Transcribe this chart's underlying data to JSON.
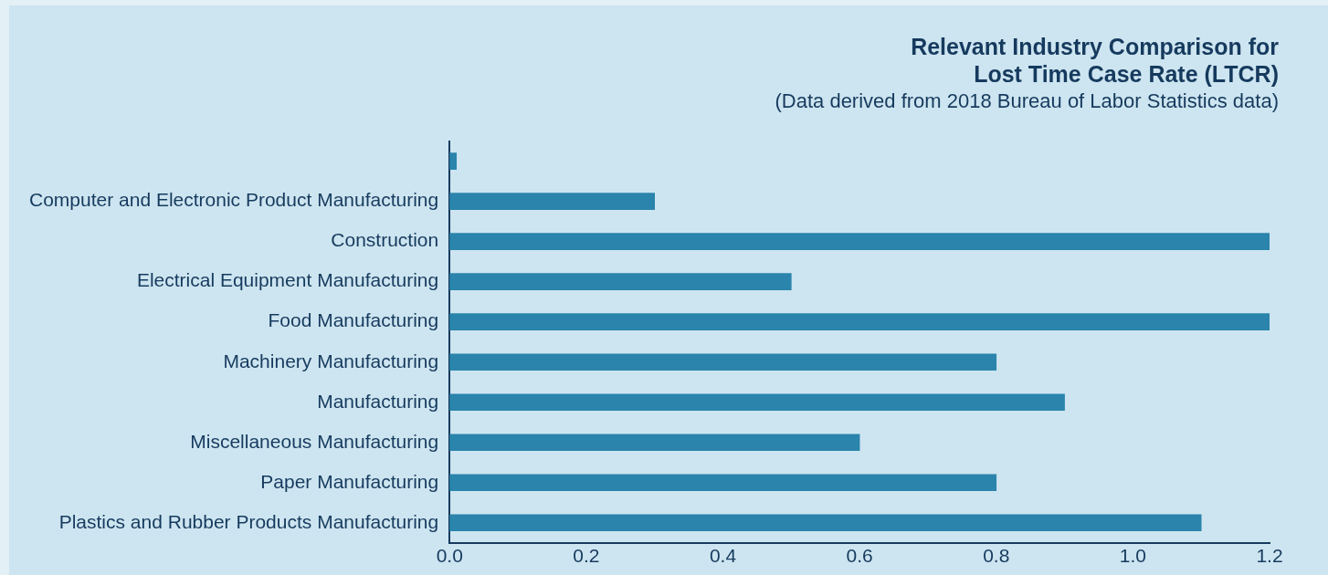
{
  "chart_data": {
    "type": "bar",
    "orientation": "horizontal",
    "title": "Relevant Industry Comparison for\nLost Time Case Rate (LTCR)",
    "subtitle": "(Data derived from 2018 Bureau of Labor Statistics data)",
    "categories": [
      null,
      "Computer and Electronic Product Manufacturing",
      "Construction",
      "Electrical Equipment Manufacturing",
      "Food Manufacturing",
      "Machinery Manufacturing",
      "Manufacturing",
      "Miscellaneous Manufacturing",
      "Paper Manufacturing",
      "Plastics and Rubber Products Manufacturing"
    ],
    "values": [
      0.01,
      0.3,
      1.2,
      0.5,
      1.2,
      0.8,
      0.9,
      0.6,
      0.8,
      1.1
    ],
    "color": "#2a84ac",
    "xlim": [
      0,
      1.2
    ],
    "xticks": [
      {
        "value": 0,
        "label": "0.0"
      },
      {
        "value": 0.2,
        "label": "0.2"
      },
      {
        "value": 0.4,
        "label": "0.4"
      },
      {
        "value": 0.6,
        "label": "0.6"
      },
      {
        "value": 0.8,
        "label": "0.8"
      },
      {
        "value": 1,
        "label": "1.0"
      },
      {
        "value": 1.2,
        "label": "1.2"
      }
    ],
    "grid": false,
    "legend": false
  }
}
